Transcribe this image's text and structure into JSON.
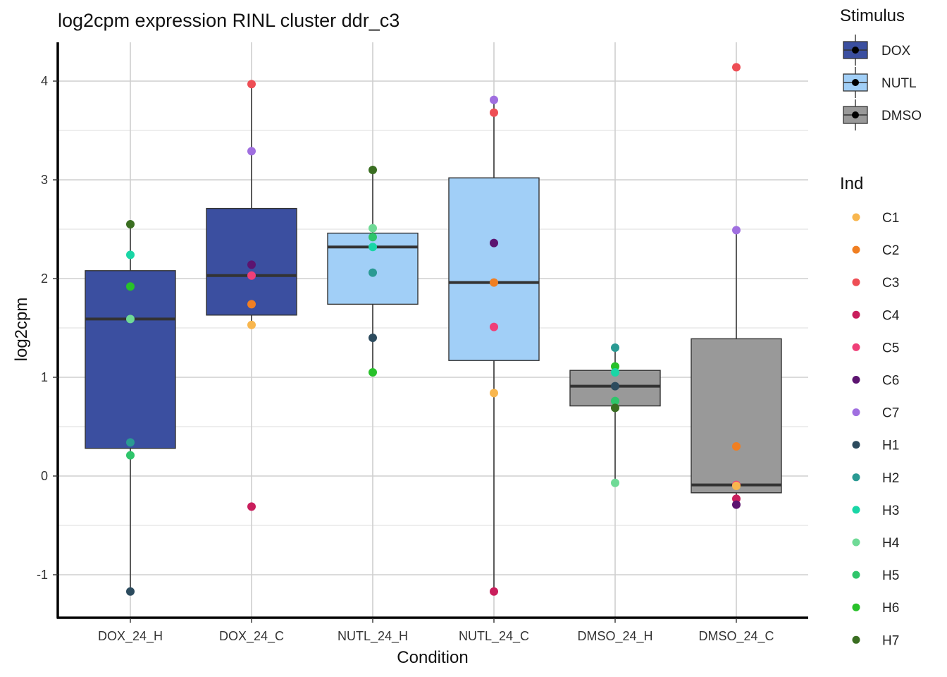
{
  "chart_data": {
    "type": "box",
    "title": "log2cpm expression RINL cluster ddr_c3",
    "xlabel": "Condition",
    "ylabel": "log2cpm",
    "ylim": [
      -1.45,
      4.3
    ],
    "yticks": [
      -1,
      0,
      1,
      2,
      3,
      4
    ],
    "yticklabels": [
      "-1",
      "0",
      "1",
      "2",
      "3",
      "4"
    ],
    "grid": true,
    "categories": [
      "DOX_24_H",
      "DOX_24_C",
      "NUTL_24_H",
      "NUTL_24_C",
      "DMSO_24_H",
      "DMSO_24_C"
    ],
    "boxes": [
      {
        "condition": "DOX_24_H",
        "stimulus": "DOX",
        "q1": 0.28,
        "median": 1.59,
        "q3": 2.08,
        "whisker_low": -1.17,
        "whisker_high": 2.55
      },
      {
        "condition": "DOX_24_C",
        "stimulus": "DOX",
        "q1": 1.63,
        "median": 2.03,
        "q3": 2.71,
        "whisker_low": 1.53,
        "whisker_high": 3.97
      },
      {
        "condition": "NUTL_24_H",
        "stimulus": "NUTL",
        "q1": 1.74,
        "median": 2.32,
        "q3": 2.46,
        "whisker_low": 1.05,
        "whisker_high": 3.1
      },
      {
        "condition": "NUTL_24_C",
        "stimulus": "NUTL",
        "q1": 1.17,
        "median": 1.96,
        "q3": 3.02,
        "whisker_low": -1.17,
        "whisker_high": 3.81
      },
      {
        "condition": "DMSO_24_H",
        "stimulus": "DMSO",
        "q1": 0.71,
        "median": 0.91,
        "q3": 1.07,
        "whisker_low": -0.07,
        "whisker_high": 1.3
      },
      {
        "condition": "DMSO_24_C",
        "stimulus": "DMSO",
        "q1": -0.17,
        "median": -0.09,
        "q3": 1.39,
        "whisker_low": -0.29,
        "whisker_high": 2.49
      }
    ],
    "points": [
      {
        "condition": "DOX_24_H",
        "ind": "H7",
        "value": 2.55
      },
      {
        "condition": "DOX_24_H",
        "ind": "H3",
        "value": 2.24
      },
      {
        "condition": "DOX_24_H",
        "ind": "H6",
        "value": 1.92
      },
      {
        "condition": "DOX_24_H",
        "ind": "H4",
        "value": 1.59
      },
      {
        "condition": "DOX_24_H",
        "ind": "H2",
        "value": 0.34
      },
      {
        "condition": "DOX_24_H",
        "ind": "H5",
        "value": 0.21
      },
      {
        "condition": "DOX_24_H",
        "ind": "H1",
        "value": -1.17
      },
      {
        "condition": "DOX_24_C",
        "ind": "C3",
        "value": 3.97
      },
      {
        "condition": "DOX_24_C",
        "ind": "C7",
        "value": 3.29
      },
      {
        "condition": "DOX_24_C",
        "ind": "C6",
        "value": 2.14
      },
      {
        "condition": "DOX_24_C",
        "ind": "C5",
        "value": 2.03
      },
      {
        "condition": "DOX_24_C",
        "ind": "C2",
        "value": 1.74
      },
      {
        "condition": "DOX_24_C",
        "ind": "C1",
        "value": 1.53
      },
      {
        "condition": "DOX_24_C",
        "ind": "C4",
        "value": -0.31
      },
      {
        "condition": "NUTL_24_H",
        "ind": "H7",
        "value": 3.1
      },
      {
        "condition": "NUTL_24_H",
        "ind": "H4",
        "value": 2.51
      },
      {
        "condition": "NUTL_24_H",
        "ind": "H5",
        "value": 2.42
      },
      {
        "condition": "NUTL_24_H",
        "ind": "H3",
        "value": 2.32
      },
      {
        "condition": "NUTL_24_H",
        "ind": "H2",
        "value": 2.06
      },
      {
        "condition": "NUTL_24_H",
        "ind": "H1",
        "value": 1.4
      },
      {
        "condition": "NUTL_24_H",
        "ind": "H6",
        "value": 1.05
      },
      {
        "condition": "NUTL_24_C",
        "ind": "C7",
        "value": 3.81
      },
      {
        "condition": "NUTL_24_C",
        "ind": "C3",
        "value": 3.68
      },
      {
        "condition": "NUTL_24_C",
        "ind": "C6",
        "value": 2.36
      },
      {
        "condition": "NUTL_24_C",
        "ind": "C2",
        "value": 1.96
      },
      {
        "condition": "NUTL_24_C",
        "ind": "C5",
        "value": 1.51
      },
      {
        "condition": "NUTL_24_C",
        "ind": "C1",
        "value": 0.84
      },
      {
        "condition": "NUTL_24_C",
        "ind": "C4",
        "value": -1.17
      },
      {
        "condition": "DMSO_24_H",
        "ind": "H2",
        "value": 1.3
      },
      {
        "condition": "DMSO_24_H",
        "ind": "H6",
        "value": 1.11
      },
      {
        "condition": "DMSO_24_H",
        "ind": "H3",
        "value": 1.05
      },
      {
        "condition": "DMSO_24_H",
        "ind": "H1",
        "value": 0.91
      },
      {
        "condition": "DMSO_24_H",
        "ind": "H5",
        "value": 0.76
      },
      {
        "condition": "DMSO_24_H",
        "ind": "H7",
        "value": 0.69
      },
      {
        "condition": "DMSO_24_H",
        "ind": "H4",
        "value": -0.07
      },
      {
        "condition": "DMSO_24_C",
        "ind": "C3",
        "value": 4.14
      },
      {
        "condition": "DMSO_24_C",
        "ind": "C7",
        "value": 2.49
      },
      {
        "condition": "DMSO_24_C",
        "ind": "C2",
        "value": 0.3
      },
      {
        "condition": "DMSO_24_C",
        "ind": "C5",
        "value": -0.09
      },
      {
        "condition": "DMSO_24_C",
        "ind": "C1",
        "value": -0.1
      },
      {
        "condition": "DMSO_24_C",
        "ind": "C4",
        "value": -0.23
      },
      {
        "condition": "DMSO_24_C",
        "ind": "C6",
        "value": -0.29
      }
    ],
    "legend_stimulus": {
      "title": "Stimulus",
      "placement": "right",
      "entries": [
        {
          "label": "DOX",
          "color": "#3B4FA0"
        },
        {
          "label": "NUTL",
          "color": "#A1CFF7"
        },
        {
          "label": "DMSO",
          "color": "#999999"
        }
      ]
    },
    "legend_ind": {
      "title": "Ind",
      "placement": "right",
      "entries": [
        {
          "label": "C1",
          "color": "#F8B64E"
        },
        {
          "label": "C2",
          "color": "#F07F22"
        },
        {
          "label": "C3",
          "color": "#EE4E55"
        },
        {
          "label": "C4",
          "color": "#C91E5C"
        },
        {
          "label": "C5",
          "color": "#EF3F78"
        },
        {
          "label": "C6",
          "color": "#5C1470"
        },
        {
          "label": "C7",
          "color": "#A06FE0"
        },
        {
          "label": "H1",
          "color": "#2C4B5E"
        },
        {
          "label": "H2",
          "color": "#2A9A93"
        },
        {
          "label": "H3",
          "color": "#19D6A6"
        },
        {
          "label": "H4",
          "color": "#6FDA96"
        },
        {
          "label": "H5",
          "color": "#2FC56B"
        },
        {
          "label": "H6",
          "color": "#28C12A"
        },
        {
          "label": "H7",
          "color": "#3A6E21"
        }
      ]
    }
  }
}
